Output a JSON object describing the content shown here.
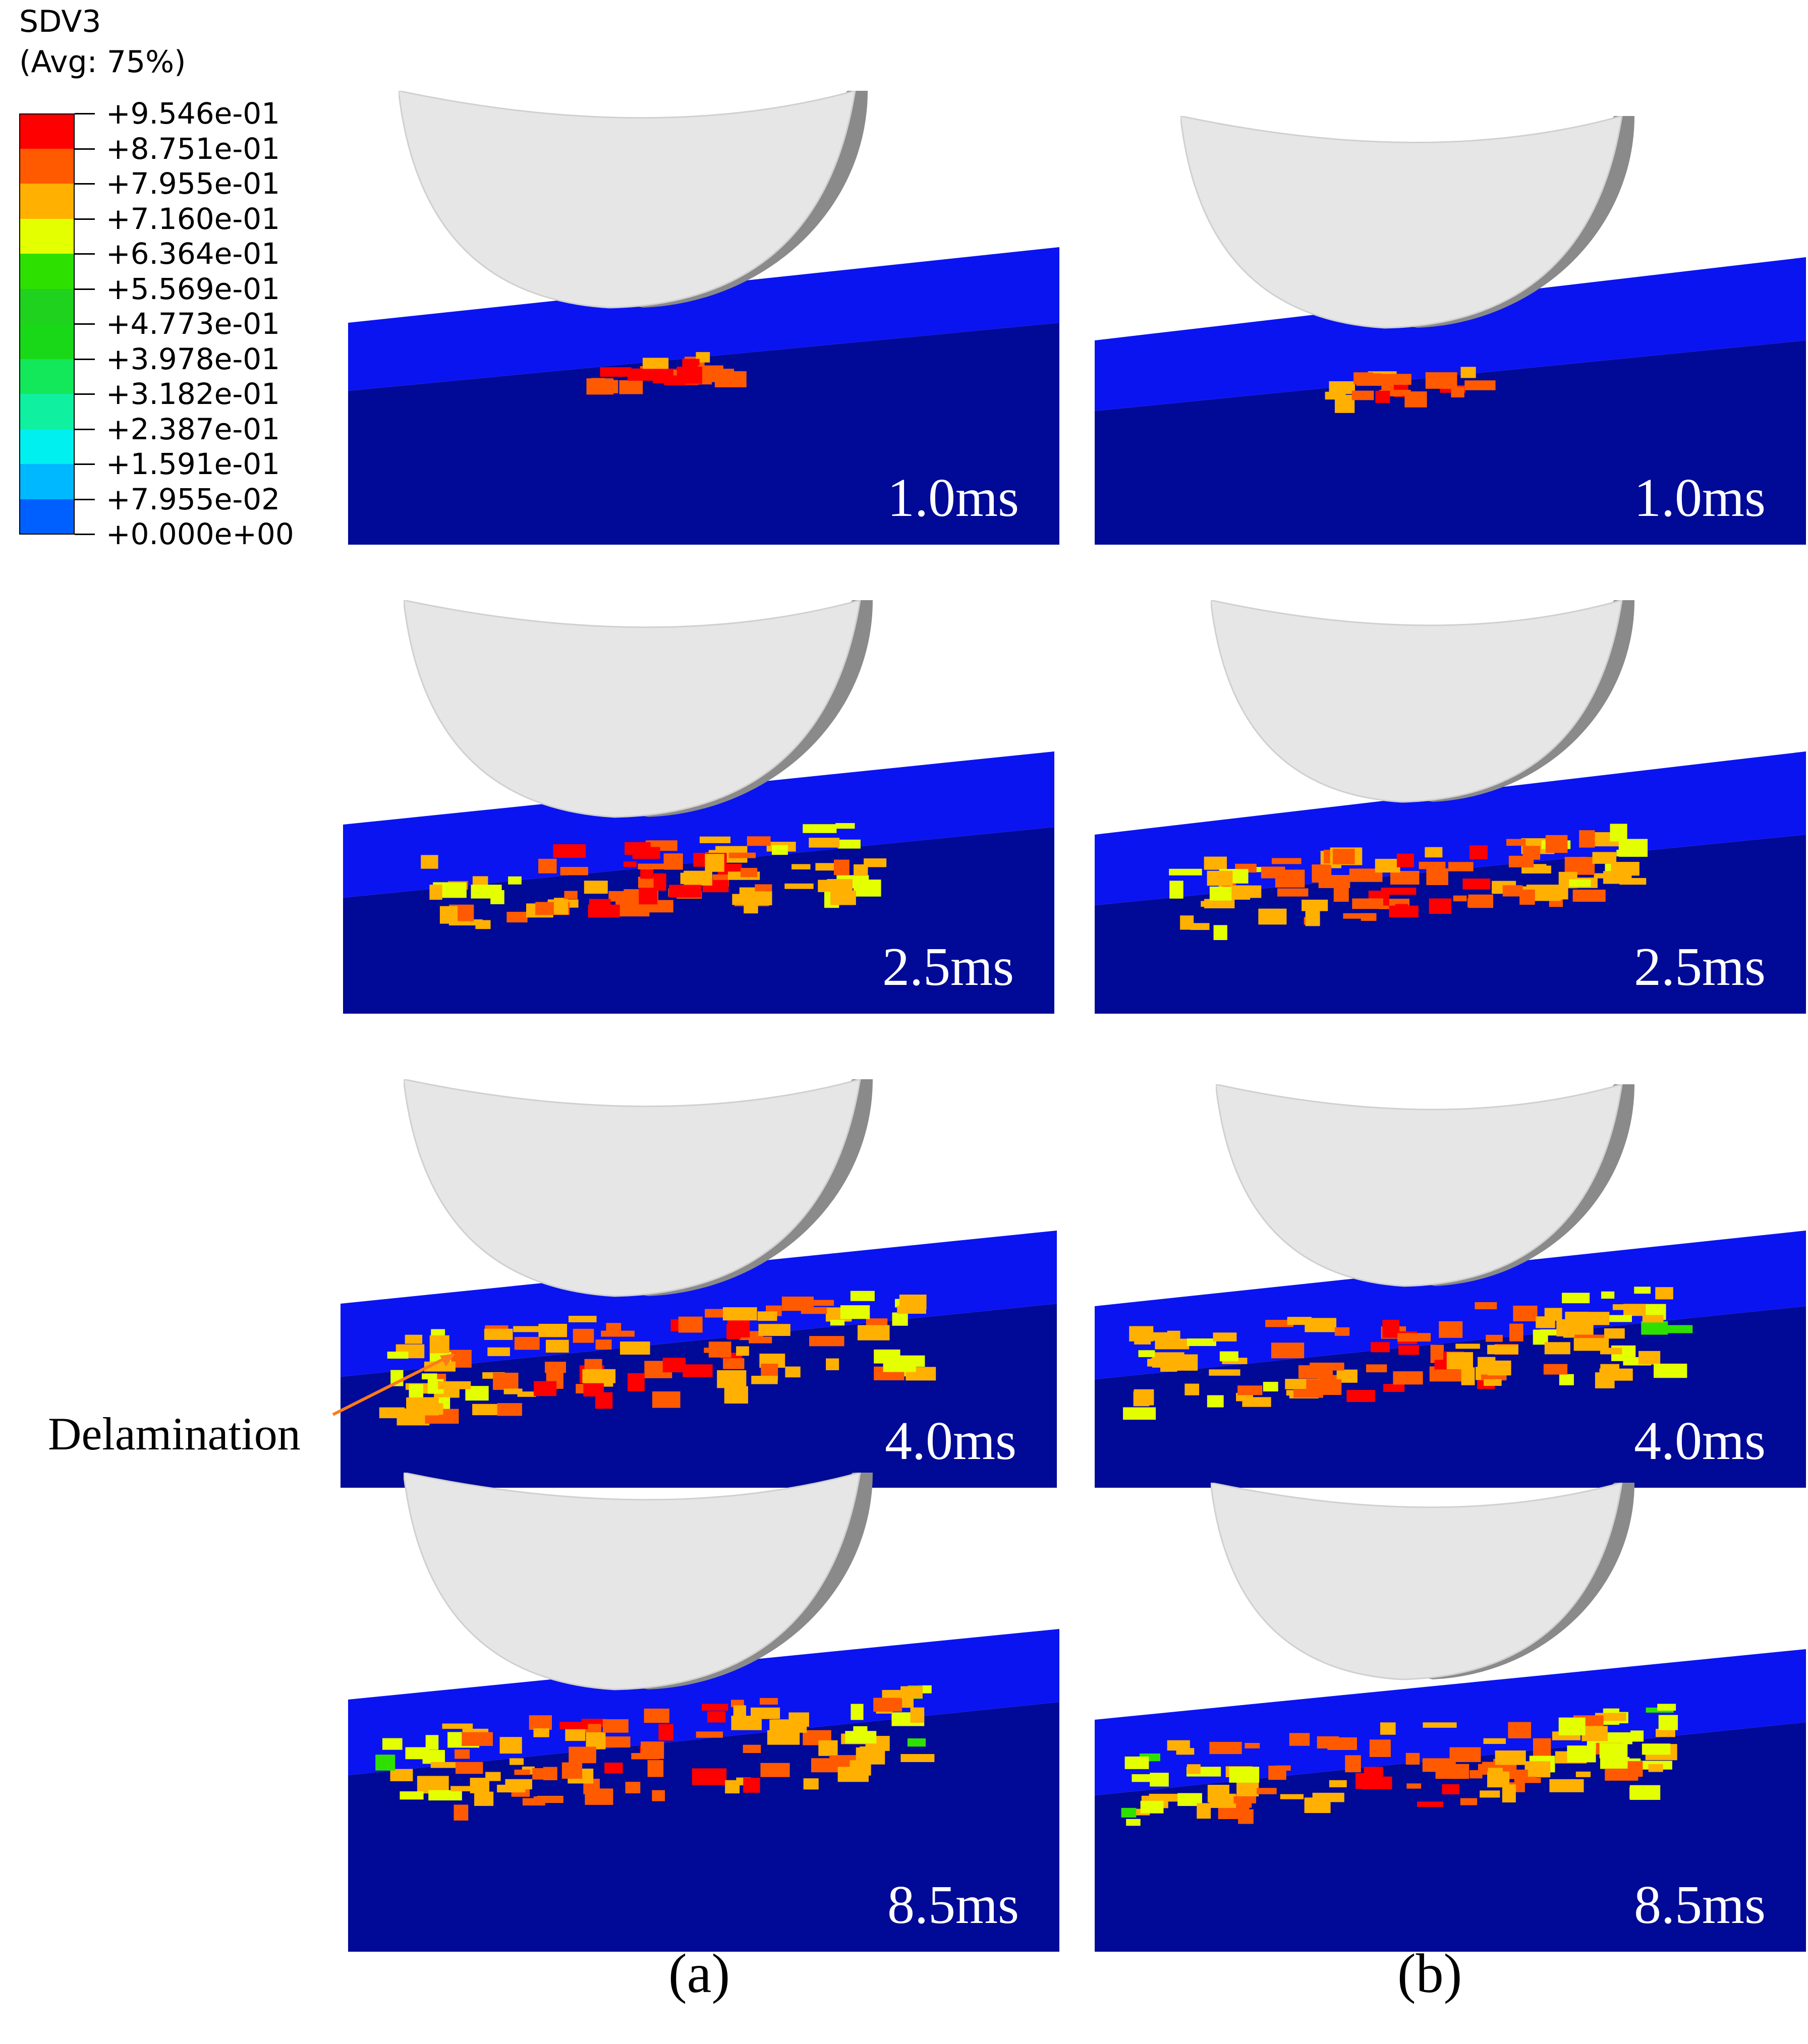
{
  "legend": {
    "title": "SDV3",
    "subtitle": "(Avg: 75%)",
    "levels": [
      "+9.546e-01",
      "+8.751e-01",
      "+7.955e-01",
      "+7.160e-01",
      "+6.364e-01",
      "+5.569e-01",
      "+4.773e-01",
      "+3.978e-01",
      "+3.182e-01",
      "+2.387e-01",
      "+1.591e-01",
      "+7.955e-02",
      "+0.000e+00"
    ],
    "colors": [
      "#ff0000",
      "#ff5a00",
      "#ffb000",
      "#e4ff00",
      "#2ee000",
      "#1ed21e",
      "#18d818",
      "#13e85a",
      "#0ff0a0",
      "#00f0f0",
      "#00b8ff",
      "#0060ff",
      "#0000ff"
    ]
  },
  "panels": {
    "a": {
      "caption": "(a)",
      "frames": [
        {
          "time": "1.0ms"
        },
        {
          "time": "2.5ms"
        },
        {
          "time": "4.0ms"
        },
        {
          "time": "8.5ms"
        }
      ]
    },
    "b": {
      "caption": "(b)",
      "frames": [
        {
          "time": "1.0ms"
        },
        {
          "time": "2.5ms"
        },
        {
          "time": "4.0ms"
        },
        {
          "time": "8.5ms"
        }
      ]
    }
  },
  "annotation": {
    "text": "Delamination"
  },
  "colors": {
    "plate_top": "#0a14f0",
    "plate_body": "#000a96",
    "impactor": "#e6e6e6"
  }
}
